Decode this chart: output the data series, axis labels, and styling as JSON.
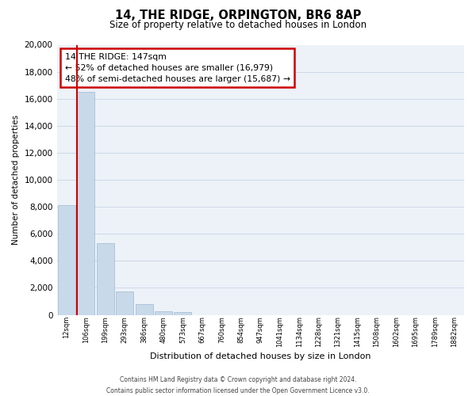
{
  "title_line1": "14, THE RIDGE, ORPINGTON, BR6 8AP",
  "title_line2": "Size of property relative to detached houses in London",
  "xlabel": "Distribution of detached houses by size in London",
  "ylabel": "Number of detached properties",
  "bar_labels": [
    "12sqm",
    "106sqm",
    "199sqm",
    "293sqm",
    "386sqm",
    "480sqm",
    "573sqm",
    "667sqm",
    "760sqm",
    "854sqm",
    "947sqm",
    "1041sqm",
    "1134sqm",
    "1228sqm",
    "1321sqm",
    "1415sqm",
    "1508sqm",
    "1602sqm",
    "1695sqm",
    "1789sqm",
    "1882sqm"
  ],
  "bar_values": [
    8100,
    16500,
    5300,
    1750,
    800,
    280,
    200,
    0,
    0,
    0,
    0,
    0,
    0,
    0,
    0,
    0,
    0,
    0,
    0,
    0,
    0
  ],
  "bar_color": "#c8d9ea",
  "bar_edge_color": "#a8c0d8",
  "highlight_bar_index": 1,
  "highlight_color": "#cc0000",
  "red_line_x": 1.0,
  "annotation_title": "14 THE RIDGE: 147sqm",
  "annotation_line1": "← 52% of detached houses are smaller (16,979)",
  "annotation_line2": "48% of semi-detached houses are larger (15,687) →",
  "annotation_box_color": "#ffffff",
  "annotation_box_edge": "#cc0000",
  "ylim": [
    0,
    20000
  ],
  "yticks": [
    0,
    2000,
    4000,
    6000,
    8000,
    10000,
    12000,
    14000,
    16000,
    18000,
    20000
  ],
  "footer_line1": "Contains HM Land Registry data © Crown copyright and database right 2024.",
  "footer_line2": "Contains public sector information licensed under the Open Government Licence v3.0.",
  "grid_color": "#ccd8e8",
  "background_color": "#edf2f8"
}
